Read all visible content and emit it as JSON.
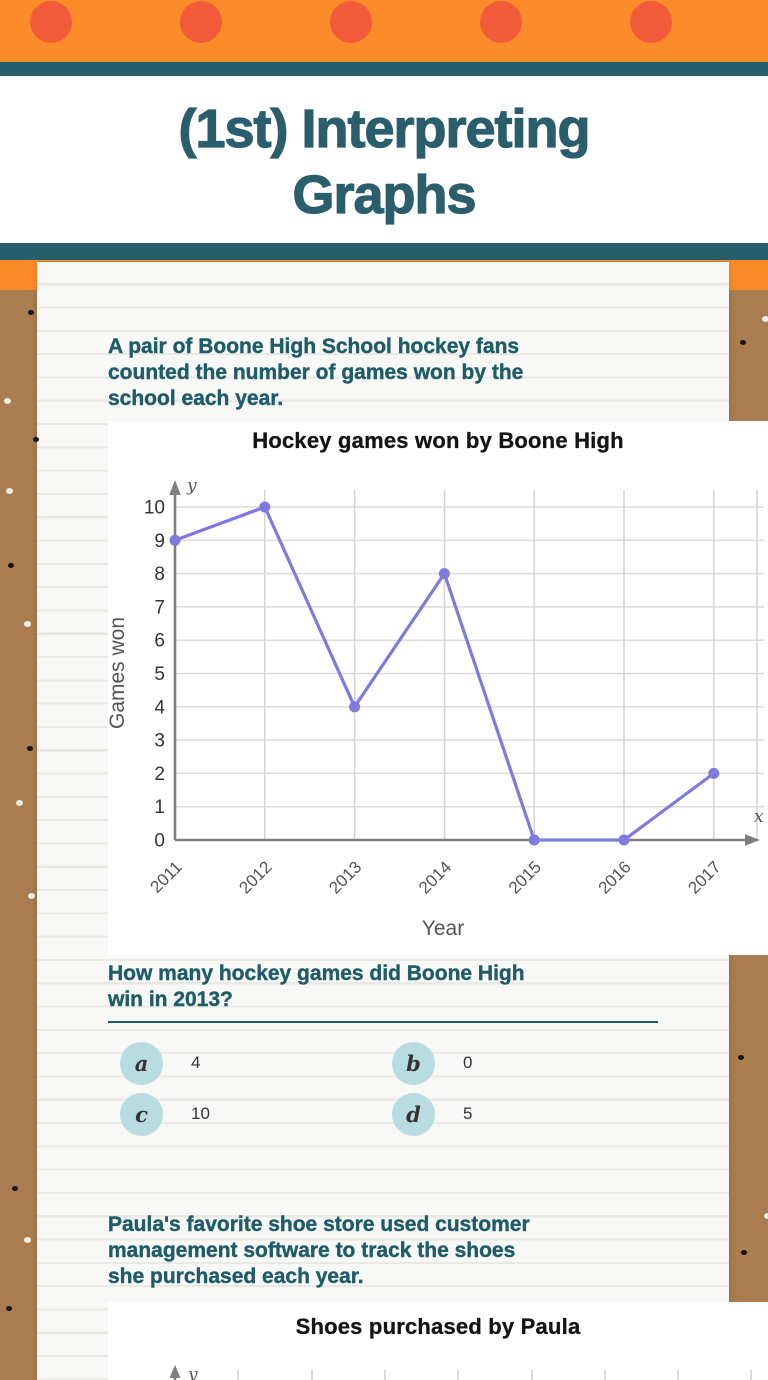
{
  "page": {
    "title": "(1st) Interpreting\nGraphs"
  },
  "section1": {
    "prompt": "A pair of Boone High School hockey fans\ncounted the number of games won by the\nschool each year.",
    "question": "How many hockey games did Boone High\nwin in 2013?",
    "options": [
      {
        "letter": "a",
        "value": "4"
      },
      {
        "letter": "b",
        "value": "0"
      },
      {
        "letter": "c",
        "value": "10"
      },
      {
        "letter": "d",
        "value": "5"
      }
    ]
  },
  "section2": {
    "prompt": "Paula's favorite shoe store used customer\nmanagement software to track the shoes\nshe purchased each year."
  },
  "chart_data": [
    {
      "type": "line",
      "title": "Hockey games won by Boone High",
      "categories": [
        "2011",
        "2012",
        "2013",
        "2014",
        "2015",
        "2016",
        "2017"
      ],
      "values": [
        9,
        10,
        4,
        8,
        0,
        0,
        2
      ],
      "xlabel": "Year",
      "ylabel": "Games won",
      "ylim": [
        0,
        10
      ],
      "y_ticks": [
        0,
        1,
        2,
        3,
        4,
        5,
        6,
        7,
        8,
        9,
        10
      ],
      "axis_letter_x": "x",
      "axis_letter_y": "y",
      "grid": true,
      "legend": false,
      "line_color": "#7f79e2"
    },
    {
      "type": "line",
      "title": "Shoes purchased by Paula",
      "axis_letter_y": "y",
      "note_visible_portion": "only chart title and top of y-axis/gridlines visible; rest cut off at page bottom"
    }
  ],
  "colors": {
    "orange_band": "#fb8c29",
    "orange_circle": "#f15b3a",
    "teal_band": "#26606b",
    "teal_title": "#2b5e6c",
    "teal_text": "#1e5c69",
    "kraft_brown": "#a97d4f",
    "option_bubble": "#b9dce0",
    "chart_line": "#7f79e2"
  }
}
